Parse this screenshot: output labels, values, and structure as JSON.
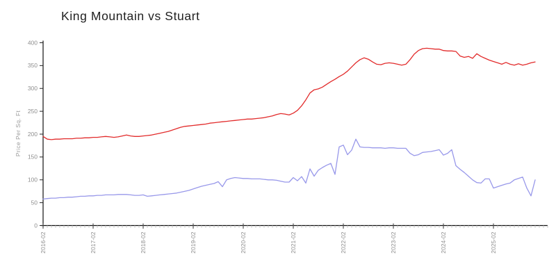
{
  "chart_data": {
    "type": "line",
    "title": "King Mountain vs Stuart",
    "ylabel": "Price Per Sq. Ft",
    "xlabel": "",
    "ylim": [
      0,
      400
    ],
    "y_ticks": [
      0,
      50,
      100,
      150,
      200,
      250,
      300,
      350,
      400
    ],
    "x_unit": "month",
    "x_start": "2016-02",
    "x_end": "2025-12",
    "x_tick_labels": [
      "2016-02",
      "2017-02",
      "2018-02",
      "2019-02",
      "2020-02",
      "2021-02",
      "2022-02",
      "2023-02",
      "2024-02",
      "2025-02"
    ],
    "grid": false,
    "legend_position": "none",
    "series": [
      {
        "name": "King Mountain",
        "color": "#e22b2b",
        "values": [
          195,
          189,
          188,
          189,
          189,
          190,
          190,
          190,
          191,
          191,
          192,
          192,
          193,
          193,
          194,
          195,
          194,
          193,
          194,
          196,
          198,
          196,
          195,
          195,
          196,
          197,
          198,
          200,
          202,
          204,
          206,
          209,
          212,
          215,
          217,
          218,
          219,
          220,
          221,
          222,
          224,
          225,
          226,
          227,
          228,
          229,
          230,
          231,
          232,
          233,
          233,
          234,
          235,
          236,
          238,
          240,
          243,
          245,
          244,
          242,
          246,
          252,
          262,
          275,
          290,
          297,
          299,
          303,
          309,
          315,
          320,
          326,
          331,
          338,
          347,
          356,
          363,
          367,
          364,
          358,
          353,
          352,
          355,
          356,
          355,
          353,
          351,
          353,
          363,
          375,
          383,
          387,
          388,
          387,
          386,
          386,
          383,
          382,
          382,
          381,
          371,
          368,
          370,
          366,
          376,
          370,
          366,
          362,
          359,
          356,
          353,
          357,
          353,
          351,
          354,
          351,
          353,
          356,
          358
        ]
      },
      {
        "name": "Stuart",
        "color": "#9898ea",
        "values": [
          58,
          59,
          60,
          60,
          61,
          61,
          62,
          62,
          63,
          64,
          64,
          65,
          65,
          66,
          66,
          67,
          67,
          67,
          68,
          68,
          68,
          67,
          66,
          66,
          67,
          64,
          65,
          66,
          67,
          68,
          69,
          70,
          71,
          73,
          75,
          77,
          80,
          83,
          86,
          88,
          90,
          92,
          96,
          85,
          100,
          103,
          105,
          104,
          103,
          103,
          102,
          102,
          102,
          101,
          100,
          100,
          99,
          97,
          95,
          95,
          105,
          98,
          107,
          93,
          124,
          108,
          121,
          127,
          132,
          136,
          112,
          172,
          176,
          155,
          165,
          189,
          172,
          171,
          171,
          170,
          170,
          170,
          169,
          170,
          170,
          169,
          169,
          169,
          158,
          153,
          155,
          160,
          161,
          162,
          164,
          166,
          154,
          158,
          166,
          131,
          123,
          116,
          108,
          100,
          94,
          93,
          102,
          102,
          82,
          85,
          88,
          91,
          93,
          100,
          103,
          106,
          82,
          65,
          100
        ]
      }
    ]
  }
}
